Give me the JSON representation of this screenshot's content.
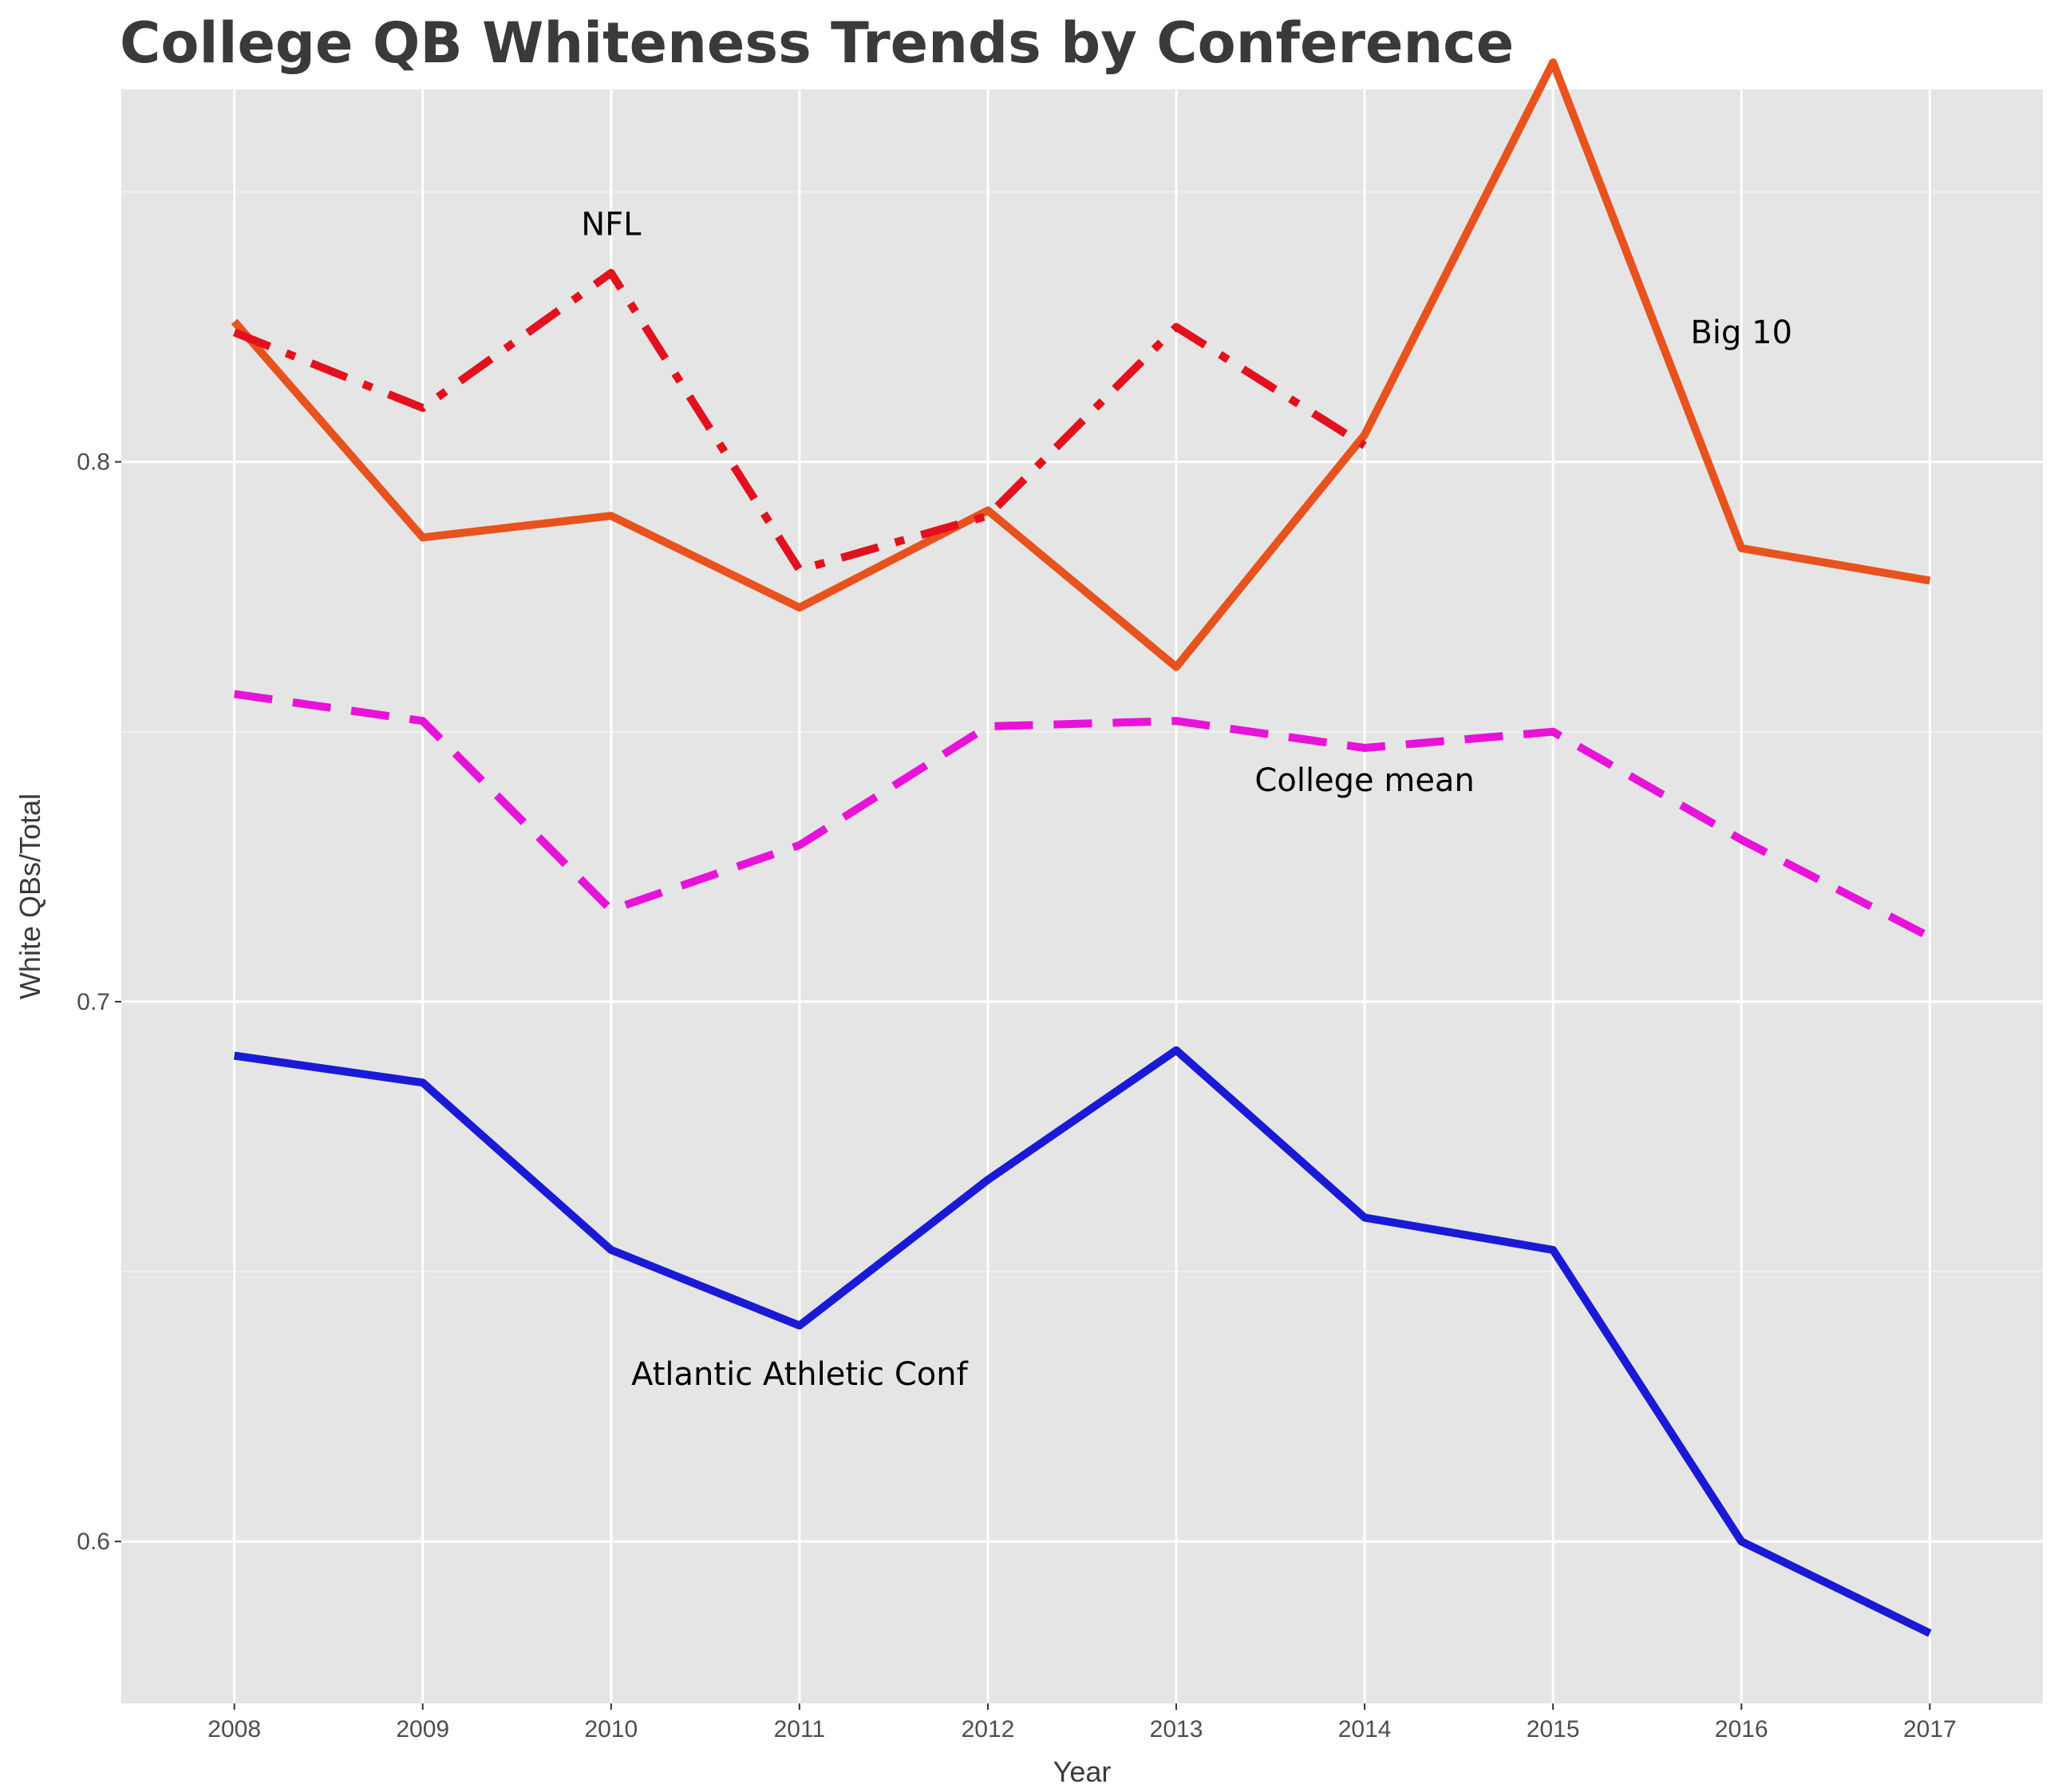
{
  "chart_data": {
    "type": "line",
    "title": "College QB Whiteness Trends by Conference",
    "xlabel": "Year",
    "ylabel": "White QBs/Total",
    "x": [
      2008,
      2009,
      2010,
      2011,
      2012,
      2013,
      2014,
      2015,
      2016,
      2017
    ],
    "xlim": [
      2007.4,
      2017.6
    ],
    "ylim": [
      0.57,
      0.869
    ],
    "yticks": [
      0.6,
      0.7,
      0.8
    ],
    "ytick_labels": [
      "0.6",
      "0.7",
      "0.8"
    ],
    "grid": true,
    "legend": "none",
    "series": [
      {
        "values": [
          0.826,
          0.786,
          0.79,
          0.773,
          0.791,
          0.762,
          0.805,
          0.874,
          0.784,
          0.778
        ],
        "color": "#e8521d",
        "dash": "solid"
      },
      {
        "values": [
          0.824,
          0.81,
          0.835,
          0.78,
          0.79,
          0.825,
          0.803,
          null,
          null,
          null
        ],
        "color": "#e3101e",
        "dash": "dashdot"
      },
      {
        "values": [
          0.757,
          0.752,
          0.717,
          0.729,
          0.751,
          0.752,
          0.747,
          0.75,
          0.73,
          0.712
        ],
        "color": "#e812d9",
        "dash": "dashed"
      },
      {
        "values": [
          0.69,
          0.685,
          0.654,
          0.64,
          0.667,
          0.691,
          0.66,
          0.654,
          0.6,
          0.583
        ],
        "color": "#1a1ad6",
        "dash": "solid"
      }
    ],
    "annotations": [
      {
        "text": "NFL",
        "x": 2010.0,
        "y": 0.842
      },
      {
        "text": "Big 10",
        "x": 2016.0,
        "y": 0.822
      },
      {
        "text": "College mean",
        "x": 2014.0,
        "y": 0.739
      },
      {
        "text": "Atlantic Athletic Conf",
        "x": 2011.0,
        "y": 0.629
      }
    ]
  }
}
